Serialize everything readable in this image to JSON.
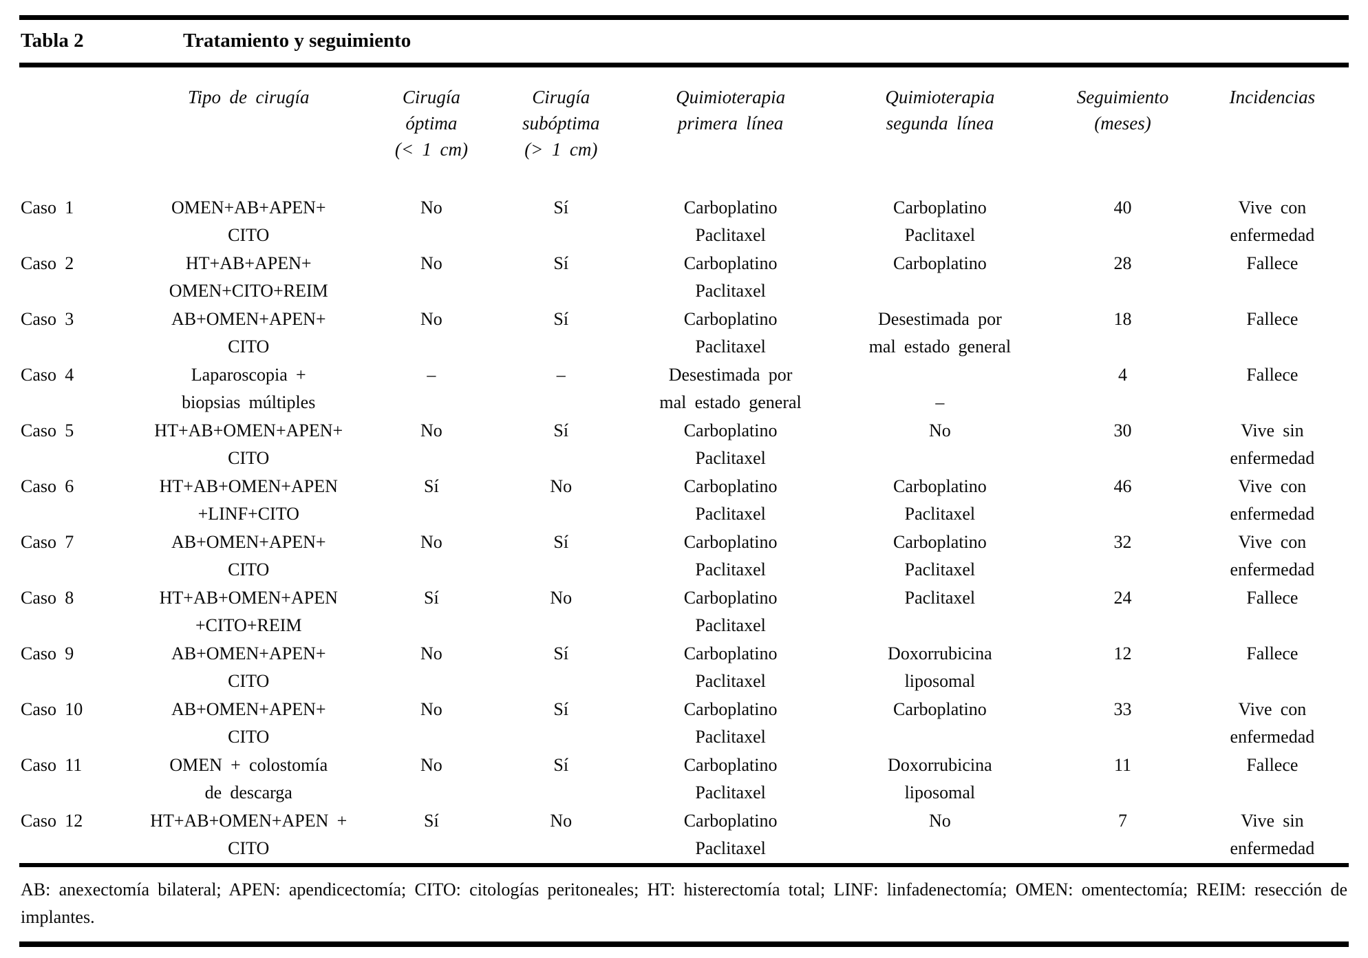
{
  "table": {
    "label": "Tabla 2",
    "title": "Tratamiento y seguimiento",
    "columns": [
      "",
      "Tipo de cirugía",
      "Cirugía\nóptima\n(< 1 cm)",
      "Cirugía\nsubóptima\n(> 1 cm)",
      "Quimioterapia\nprimera línea",
      "Quimioterapia\nsegunda línea",
      "Seguimiento\n(meses)",
      "Incidencias"
    ],
    "rows": [
      {
        "caso": "Caso 1",
        "tipo": "OMEN+AB+APEN+\nCITO",
        "optima": "No",
        "suboptima": "Sí",
        "quimio1": "Carboplatino\nPaclitaxel",
        "quimio2": "Carboplatino\nPaclitaxel",
        "seguimiento": "40",
        "incidencias": "Vive con\nenfermedad"
      },
      {
        "caso": "Caso 2",
        "tipo": "HT+AB+APEN+\nOMEN+CITO+REIM",
        "optima": "No",
        "suboptima": "Sí",
        "quimio1": "Carboplatino\nPaclitaxel",
        "quimio2": "Carboplatino",
        "seguimiento": "28",
        "incidencias": "Fallece"
      },
      {
        "caso": "Caso 3",
        "tipo": "AB+OMEN+APEN+\nCITO",
        "optima": "No",
        "suboptima": "Sí",
        "quimio1": "Carboplatino\nPaclitaxel",
        "quimio2": "Desestimada por\nmal estado general",
        "seguimiento": "18",
        "incidencias": "Fallece"
      },
      {
        "caso": "Caso 4",
        "tipo": "Laparoscopia +\nbiopsias múltiples",
        "optima": "–",
        "suboptima": "–",
        "quimio1": "Desestimada por\nmal estado general",
        "quimio2": "\n–",
        "seguimiento": "4",
        "incidencias": "Fallece"
      },
      {
        "caso": "Caso 5",
        "tipo": "HT+AB+OMEN+APEN+\nCITO",
        "optima": "No",
        "suboptima": "Sí",
        "quimio1": "Carboplatino\nPaclitaxel",
        "quimio2": "No",
        "seguimiento": "30",
        "incidencias": "Vive sin\nenfermedad"
      },
      {
        "caso": "Caso 6",
        "tipo": "HT+AB+OMEN+APEN\n+LINF+CITO",
        "optima": "Sí",
        "suboptima": "No",
        "quimio1": "Carboplatino\nPaclitaxel",
        "quimio2": "Carboplatino\nPaclitaxel",
        "seguimiento": "46",
        "incidencias": "Vive con\nenfermedad"
      },
      {
        "caso": "Caso 7",
        "tipo": "AB+OMEN+APEN+\nCITO",
        "optima": "No",
        "suboptima": "Sí",
        "quimio1": "Carboplatino\nPaclitaxel",
        "quimio2": "Carboplatino\nPaclitaxel",
        "seguimiento": "32",
        "incidencias": "Vive con\nenfermedad"
      },
      {
        "caso": "Caso 8",
        "tipo": "HT+AB+OMEN+APEN\n+CITO+REIM",
        "optima": "Sí",
        "suboptima": "No",
        "quimio1": "Carboplatino\nPaclitaxel",
        "quimio2": "Paclitaxel",
        "seguimiento": "24",
        "incidencias": "Fallece"
      },
      {
        "caso": "Caso 9",
        "tipo": "AB+OMEN+APEN+\nCITO",
        "optima": "No",
        "suboptima": "Sí",
        "quimio1": "Carboplatino\nPaclitaxel",
        "quimio2": "Doxorrubicina\nliposomal",
        "seguimiento": "12",
        "incidencias": "Fallece"
      },
      {
        "caso": "Caso 10",
        "tipo": "AB+OMEN+APEN+\nCITO",
        "optima": "No",
        "suboptima": "Sí",
        "quimio1": "Carboplatino\nPaclitaxel",
        "quimio2": "Carboplatino",
        "seguimiento": "33",
        "incidencias": "Vive con\nenfermedad"
      },
      {
        "caso": "Caso 11",
        "tipo": "OMEN + colostomía\nde descarga",
        "optima": "No",
        "suboptima": "Sí",
        "quimio1": "Carboplatino\nPaclitaxel",
        "quimio2": "Doxorrubicina\nliposomal",
        "seguimiento": "11",
        "incidencias": "Fallece"
      },
      {
        "caso": "Caso 12",
        "tipo": "HT+AB+OMEN+APEN +\nCITO",
        "optima": "Sí",
        "suboptima": "No",
        "quimio1": "Carboplatino\nPaclitaxel",
        "quimio2": "No",
        "seguimiento": "7",
        "incidencias": "Vive sin\nenfermedad"
      }
    ],
    "footnote": "AB: anexectomía bilateral; APEN: apendicectomía; CITO: citologías peritoneales; HT: histerectomía total; LINF: linfadenectomía; OMEN: omentectomía; REIM: resección de implantes."
  }
}
